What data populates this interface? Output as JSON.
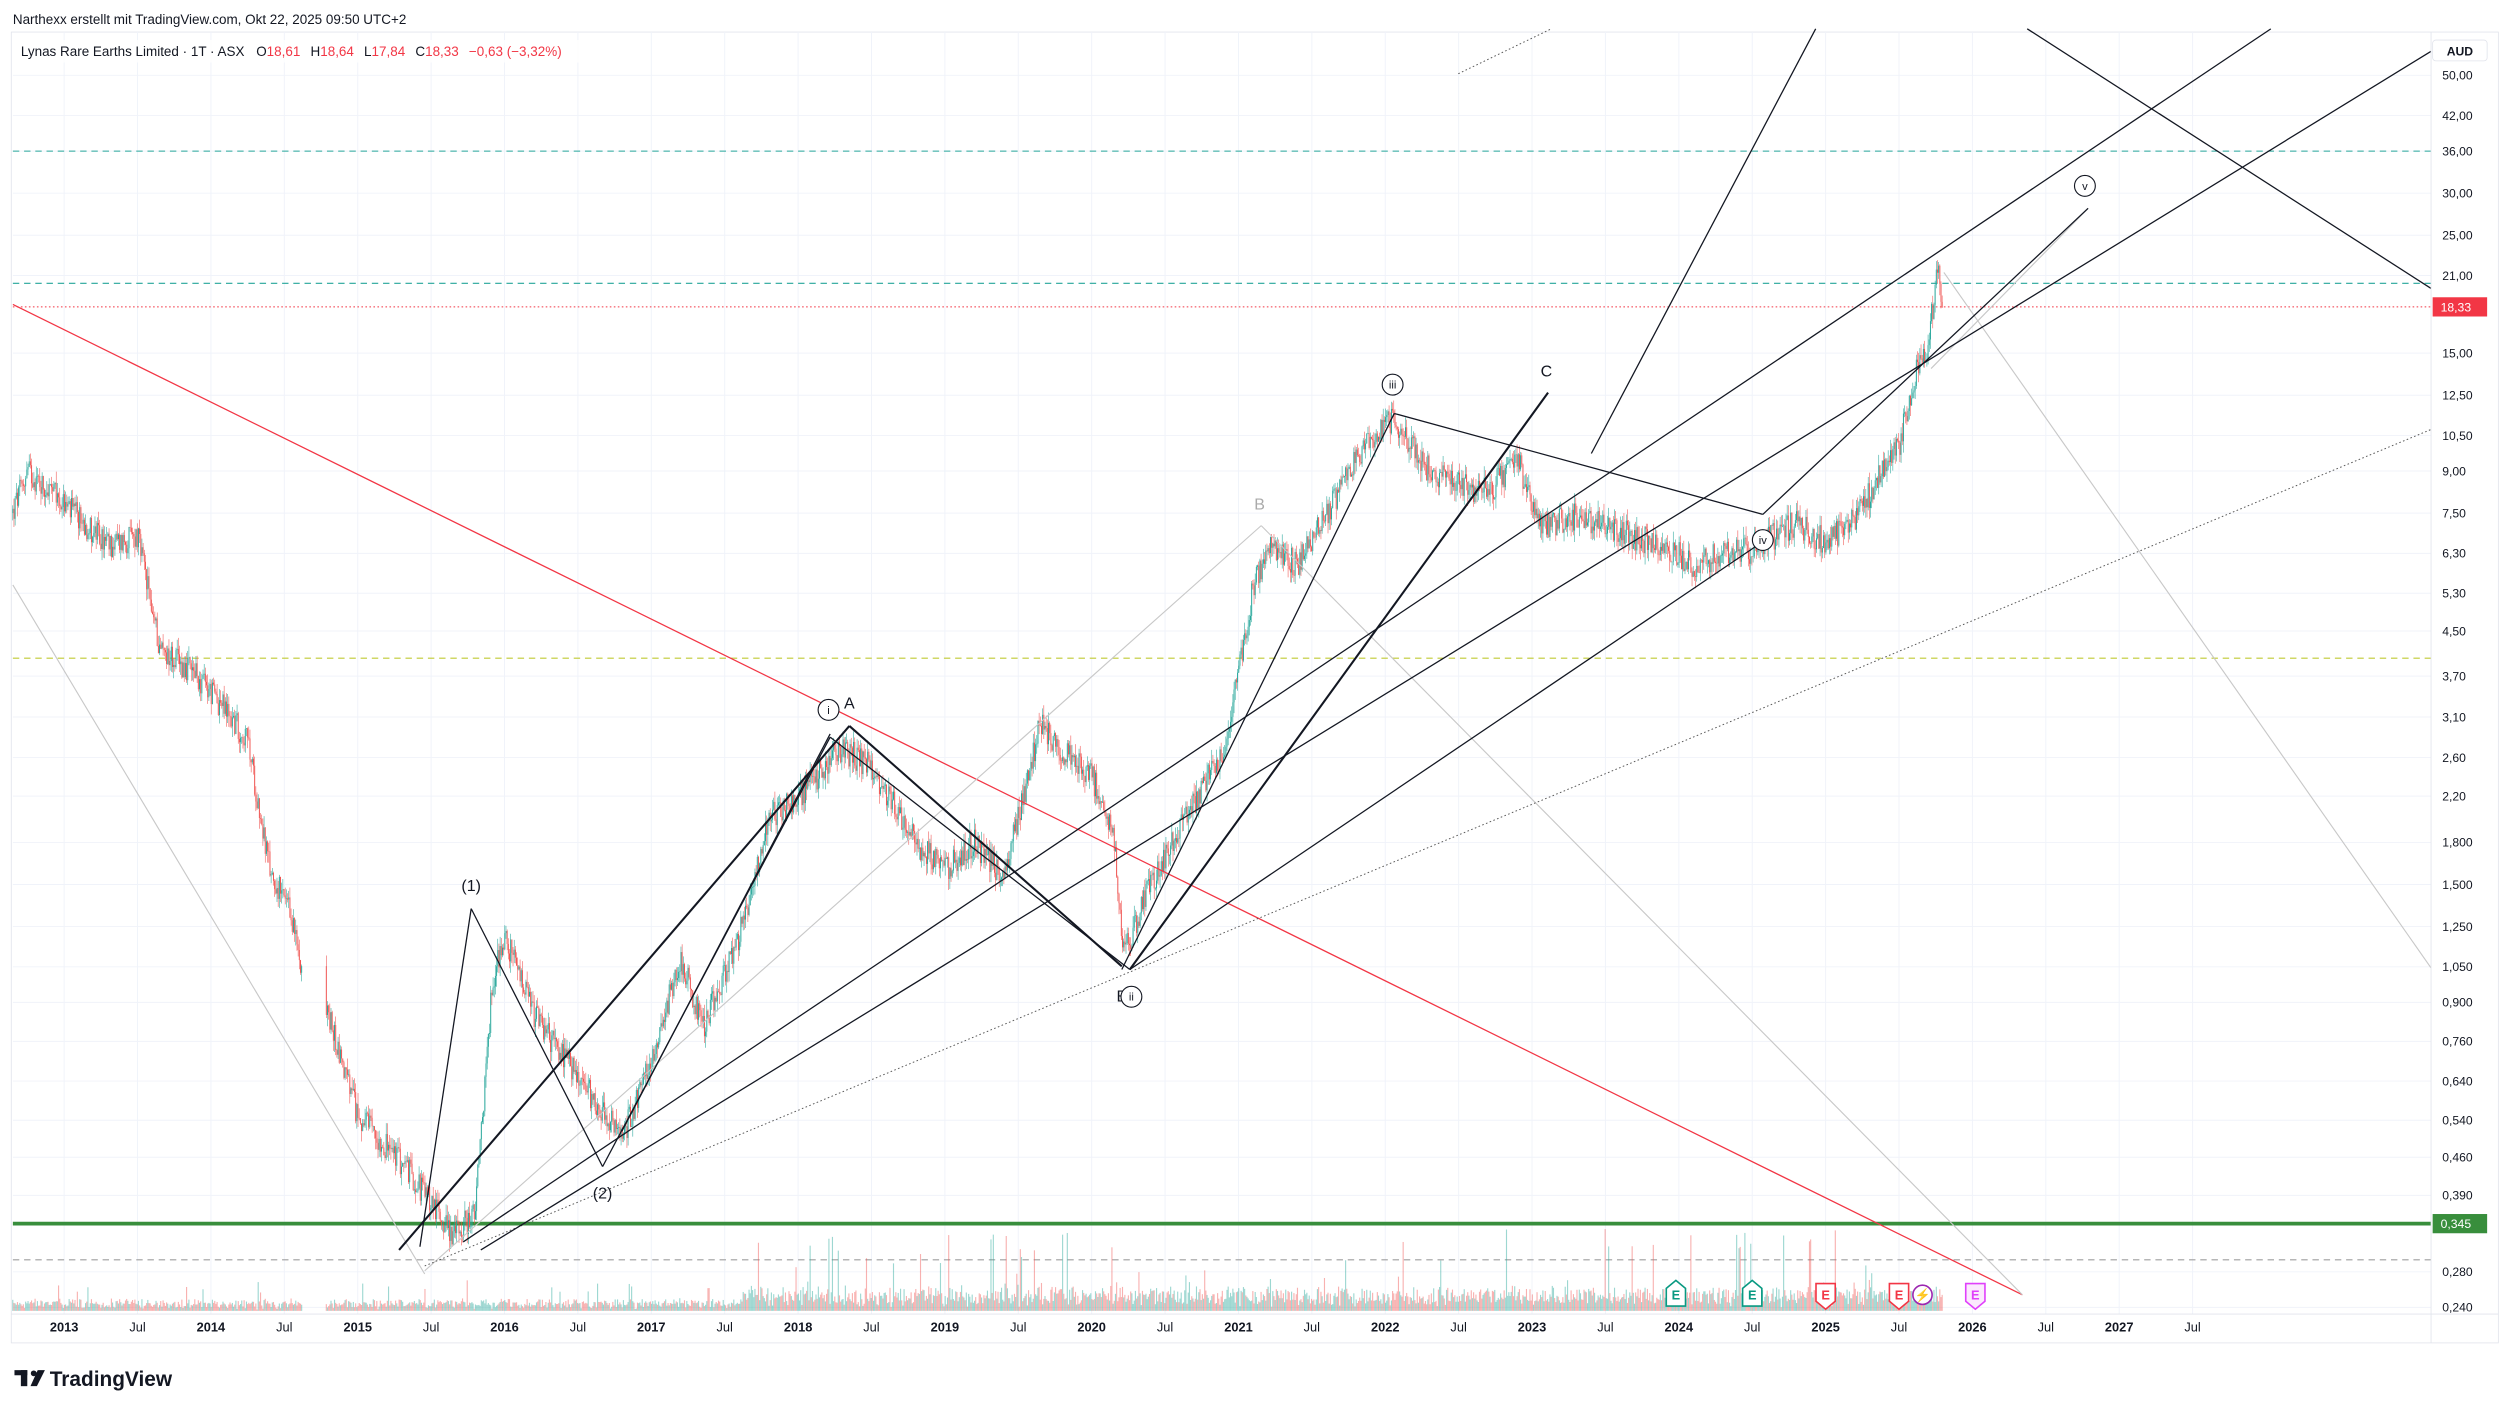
{
  "header": {
    "attribution": "Narthexx erstellt mit TradingView.com, Okt 22, 2025 09:50 UTC+2",
    "symbol": "Lynas Rare Earths Limited · 1T · ASX",
    "o_label": "O",
    "o_value": "18,61",
    "h_label": "H",
    "h_value": "18,64",
    "l_label": "L",
    "l_value": "17,84",
    "c_label": "C",
    "c_value": "18,33",
    "change": "−0,63 (−3,32%)"
  },
  "footer": {
    "logo_text": "TradingView"
  },
  "colors": {
    "up": "#26a69a",
    "down": "#ef5350",
    "accent_red": "#f23645",
    "support_green": "#388e3c"
  },
  "chart_data": {
    "type": "candlestick",
    "currency": "AUD",
    "scale": "log",
    "ylim": [
      0.235,
      55
    ],
    "xlim": [
      2012.65,
      2027.95
    ],
    "y_ticks": [
      "50,00",
      "42,00",
      "36,00",
      "30,00",
      "25,00",
      "21,00",
      "15,00",
      "12,50",
      "10,50",
      "9,00",
      "7,50",
      "6,30",
      "5,30",
      "4,50",
      "3,70",
      "3,10",
      "2,60",
      "2,20",
      "1,800",
      "1,500",
      "1,250",
      "1,050",
      "0,900",
      "0,760",
      "0,640",
      "0,540",
      "0,460",
      "0,390",
      "0,280",
      "0,240"
    ],
    "y_tick_values": [
      50,
      42,
      36,
      30,
      25,
      21,
      15,
      12.5,
      10.5,
      9,
      7.5,
      6.3,
      5.3,
      4.5,
      3.7,
      3.1,
      2.6,
      2.2,
      1.8,
      1.5,
      1.25,
      1.05,
      0.9,
      0.76,
      0.64,
      0.54,
      0.46,
      0.39,
      0.28,
      0.24
    ],
    "x_ticks": [
      {
        "label": "2013",
        "t": 2013.0,
        "year": true
      },
      {
        "label": "Jul",
        "t": 2013.5,
        "year": false
      },
      {
        "label": "2014",
        "t": 2014.0,
        "year": true
      },
      {
        "label": "Jul",
        "t": 2014.5,
        "year": false
      },
      {
        "label": "2015",
        "t": 2015.0,
        "year": true
      },
      {
        "label": "Jul",
        "t": 2015.5,
        "year": false
      },
      {
        "label": "2016",
        "t": 2016.0,
        "year": true
      },
      {
        "label": "Jul",
        "t": 2016.5,
        "year": false
      },
      {
        "label": "2017",
        "t": 2017.0,
        "year": true
      },
      {
        "label": "Jul",
        "t": 2017.5,
        "year": false
      },
      {
        "label": "2018",
        "t": 2018.0,
        "year": true
      },
      {
        "label": "Jul",
        "t": 2018.5,
        "year": false
      },
      {
        "label": "2019",
        "t": 2019.0,
        "year": true
      },
      {
        "label": "Jul",
        "t": 2019.5,
        "year": false
      },
      {
        "label": "2020",
        "t": 2020.0,
        "year": true
      },
      {
        "label": "Jul",
        "t": 2020.5,
        "year": false
      },
      {
        "label": "2021",
        "t": 2021.0,
        "year": true
      },
      {
        "label": "Jul",
        "t": 2021.5,
        "year": false
      },
      {
        "label": "2022",
        "t": 2022.0,
        "year": true
      },
      {
        "label": "Jul",
        "t": 2022.5,
        "year": false
      },
      {
        "label": "2023",
        "t": 2023.0,
        "year": true
      },
      {
        "label": "Jul",
        "t": 2023.5,
        "year": false
      },
      {
        "label": "2024",
        "t": 2024.0,
        "year": true
      },
      {
        "label": "Jul",
        "t": 2024.5,
        "year": false
      },
      {
        "label": "2025",
        "t": 2025.0,
        "year": true
      },
      {
        "label": "Jul",
        "t": 2025.5,
        "year": false
      },
      {
        "label": "2026",
        "t": 2026.0,
        "year": true
      },
      {
        "label": "Jul",
        "t": 2026.5,
        "year": false
      },
      {
        "label": "2027",
        "t": 2027.0,
        "year": true
      },
      {
        "label": "Jul",
        "t": 2027.5,
        "year": false
      }
    ],
    "last_price": {
      "label": "18,33",
      "value": 18.33
    },
    "support_level": {
      "label": "0,345",
      "value": 0.345
    },
    "horizontal_levels": [
      {
        "value": 36,
        "style": "dashed",
        "color": "#26a69a"
      },
      {
        "value": 20.3,
        "style": "dashed",
        "color": "#26a69a"
      },
      {
        "value": 4.0,
        "style": "dashed",
        "color": "#c0ca33"
      },
      {
        "value": 0.295,
        "style": "dashed",
        "color": "#9e9e9e"
      }
    ],
    "price_path": [
      [
        2012.65,
        7.5
      ],
      [
        2012.75,
        9
      ],
      [
        2013.0,
        7.8
      ],
      [
        2013.3,
        6.5
      ],
      [
        2013.5,
        6.8
      ],
      [
        2013.65,
        4.2
      ],
      [
        2013.9,
        3.7
      ],
      [
        2014.1,
        3.2
      ],
      [
        2014.25,
        2.8
      ],
      [
        2014.4,
        1.6
      ],
      [
        2014.55,
        1.3
      ],
      [
        2014.6,
        1.1
      ],
      [
        2014.8,
        0.85
      ],
      [
        2015.0,
        0.55
      ],
      [
        2015.3,
        0.45
      ],
      [
        2015.5,
        0.38
      ],
      [
        2015.65,
        0.33
      ],
      [
        2015.8,
        0.36
      ],
      [
        2015.92,
        1.0
      ],
      [
        2016.0,
        1.2
      ],
      [
        2016.2,
        0.85
      ],
      [
        2016.5,
        0.65
      ],
      [
        2016.8,
        0.5
      ],
      [
        2017.0,
        0.7
      ],
      [
        2017.2,
        1.1
      ],
      [
        2017.35,
        0.8
      ],
      [
        2017.6,
        1.2
      ],
      [
        2017.8,
        2.0
      ],
      [
        2018.0,
        2.2
      ],
      [
        2018.3,
        2.7
      ],
      [
        2018.5,
        2.5
      ],
      [
        2018.8,
        1.8
      ],
      [
        2019.0,
        1.6
      ],
      [
        2019.2,
        1.8
      ],
      [
        2019.4,
        1.55
      ],
      [
        2019.55,
        2.3
      ],
      [
        2019.65,
        3.0
      ],
      [
        2019.85,
        2.6
      ],
      [
        2020.0,
        2.4
      ],
      [
        2020.15,
        1.9
      ],
      [
        2020.22,
        1.1
      ],
      [
        2020.35,
        1.4
      ],
      [
        2020.6,
        1.9
      ],
      [
        2020.9,
        2.7
      ],
      [
        2021.0,
        3.8
      ],
      [
        2021.1,
        5.4
      ],
      [
        2021.2,
        6.5
      ],
      [
        2021.4,
        6.0
      ],
      [
        2021.6,
        7.5
      ],
      [
        2021.85,
        10
      ],
      [
        2022.05,
        11.2
      ],
      [
        2022.3,
        9
      ],
      [
        2022.5,
        8.5
      ],
      [
        2022.7,
        8.2
      ],
      [
        2022.9,
        9.5
      ],
      [
        2023.05,
        7
      ],
      [
        2023.3,
        7.4
      ],
      [
        2023.6,
        6.9
      ],
      [
        2023.9,
        6.5
      ],
      [
        2024.1,
        6.0
      ],
      [
        2024.3,
        6.3
      ],
      [
        2024.5,
        6.4
      ],
      [
        2024.8,
        7.2
      ],
      [
        2025.0,
        6.6
      ],
      [
        2025.2,
        7.3
      ],
      [
        2025.35,
        8.6
      ],
      [
        2025.5,
        10
      ],
      [
        2025.6,
        13.5
      ],
      [
        2025.7,
        15.5
      ],
      [
        2025.76,
        21.5
      ],
      [
        2025.8,
        18.33
      ]
    ],
    "gap": [
      2014.62,
      2014.78
    ],
    "annotations": {
      "w1": "(1)",
      "w2": "(2)",
      "A": "A",
      "B_gray": "B",
      "B_black": "B",
      "C": "C",
      "i": "i",
      "ii": "ii",
      "iii": "iii",
      "iv": "iv",
      "v": "v"
    },
    "events": [
      {
        "type": "earnings",
        "label": "E",
        "color": "#089981",
        "t": 2023.98
      },
      {
        "type": "earnings",
        "label": "E",
        "color": "#089981",
        "t": 2024.5
      },
      {
        "type": "earnings",
        "label": "E",
        "color": "#f23645",
        "t": 2025.0
      },
      {
        "type": "earnings",
        "label": "E",
        "color": "#f23645",
        "t": 2025.5
      },
      {
        "type": "dividend",
        "label": "⚡",
        "color": "#9c27b0",
        "t": 2025.66
      },
      {
        "type": "earnings-upcoming",
        "label": "E",
        "color": "#e040fb",
        "t": 2026.02
      }
    ]
  }
}
